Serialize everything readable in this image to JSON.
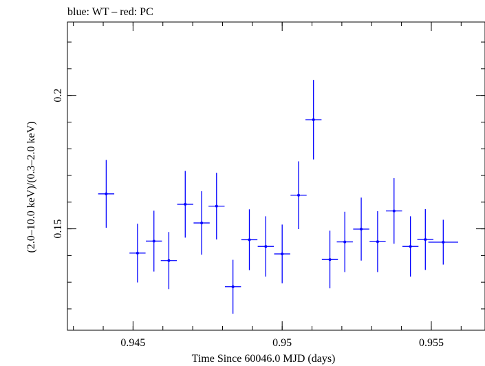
{
  "chart_data": {
    "type": "scatter",
    "title": "blue: WT – red: PC",
    "xlabel": "Time Since 60046.0 MJD (days)",
    "ylabel": "(2.0–10.0 keV)/(0.3–2.0 keV)",
    "xlim": [
      0.9428,
      0.9568
    ],
    "ylim": [
      0.112,
      0.2275
    ],
    "x_ticks": [
      {
        "value": 0.945,
        "label": "0.945"
      },
      {
        "value": 0.95,
        "label": "0.95"
      },
      {
        "value": 0.955,
        "label": "0.955"
      }
    ],
    "x_minor_step": 0.001,
    "y_ticks": [
      {
        "value": 0.15,
        "label": "0.15"
      },
      {
        "value": 0.2,
        "label": "0.2"
      }
    ],
    "y_minor_step": 0.01,
    "grid": false,
    "series": [
      {
        "color": "#0000ff",
        "points": [
          {
            "x": 0.9441,
            "xerr": 0.00027,
            "y": 0.1631,
            "yerr": 0.0127
          },
          {
            "x": 0.94515,
            "xerr": 0.00027,
            "y": 0.1409,
            "yerr": 0.011
          },
          {
            "x": 0.9457,
            "xerr": 0.00027,
            "y": 0.1454,
            "yerr": 0.0114
          },
          {
            "x": 0.94675,
            "xerr": 0.00027,
            "y": 0.1592,
            "yerr": 0.0125
          },
          {
            "x": 0.9462,
            "xerr": 0.00027,
            "y": 0.1381,
            "yerr": 0.0107
          },
          {
            "x": 0.9473,
            "xerr": 0.00027,
            "y": 0.1522,
            "yerr": 0.0119
          },
          {
            "x": 0.9478,
            "xerr": 0.00027,
            "y": 0.1585,
            "yerr": 0.0125
          },
          {
            "x": 0.94835,
            "xerr": 0.00027,
            "y": 0.1283,
            "yerr": 0.0101
          },
          {
            "x": 0.9489,
            "xerr": 0.00027,
            "y": 0.1459,
            "yerr": 0.0114
          },
          {
            "x": 0.94945,
            "xerr": 0.00027,
            "y": 0.1434,
            "yerr": 0.0113
          },
          {
            "x": 0.95,
            "xerr": 0.00027,
            "y": 0.1406,
            "yerr": 0.011
          },
          {
            "x": 0.95055,
            "xerr": 0.00027,
            "y": 0.1626,
            "yerr": 0.0127
          },
          {
            "x": 0.95105,
            "xerr": 0.00027,
            "y": 0.1909,
            "yerr": 0.0149
          },
          {
            "x": 0.9516,
            "xerr": 0.00027,
            "y": 0.1385,
            "yerr": 0.0108
          },
          {
            "x": 0.9521,
            "xerr": 0.00027,
            "y": 0.1451,
            "yerr": 0.0113
          },
          {
            "x": 0.95265,
            "xerr": 0.00027,
            "y": 0.1499,
            "yerr": 0.0118
          },
          {
            "x": 0.9532,
            "xerr": 0.00027,
            "y": 0.1452,
            "yerr": 0.0114
          },
          {
            "x": 0.95375,
            "xerr": 0.00027,
            "y": 0.1567,
            "yerr": 0.0123
          },
          {
            "x": 0.9543,
            "xerr": 0.00027,
            "y": 0.1434,
            "yerr": 0.0113
          },
          {
            "x": 0.9548,
            "xerr": 0.00027,
            "y": 0.146,
            "yerr": 0.0114
          },
          {
            "x": 0.9554,
            "xerr": 0.0005,
            "y": 0.145,
            "yerr": 0.0084
          }
        ]
      }
    ]
  }
}
